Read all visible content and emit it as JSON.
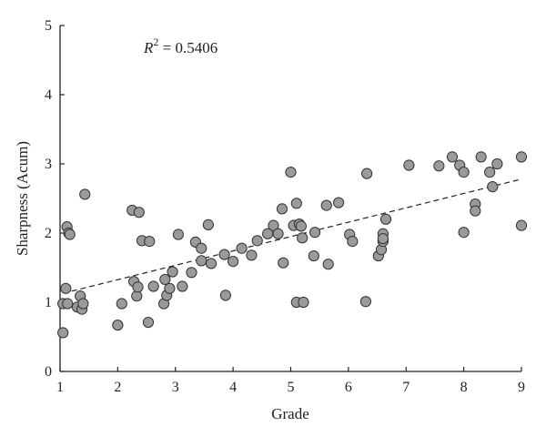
{
  "chart_data": {
    "type": "scatter",
    "title": "",
    "xlabel": "Grade",
    "ylabel": "Sharpness (Acum)",
    "xlim": [
      1,
      9
    ],
    "ylim": [
      0,
      5
    ],
    "xticks": [
      1,
      2,
      3,
      4,
      5,
      6,
      7,
      8,
      9
    ],
    "yticks": [
      0,
      1,
      2,
      3,
      4,
      5
    ],
    "grid": false,
    "legend": "none",
    "annotation": {
      "prefix": "R",
      "superscript": "2",
      "value": " = 0.5406"
    },
    "marker_fill": "#9a9a9a",
    "marker_stroke": "#333333",
    "trendline": {
      "style": "dashed",
      "x": [
        1.2,
        9
      ],
      "y": [
        1.16,
        2.78
      ]
    },
    "points": [
      [
        1.05,
        0.56
      ],
      [
        1.05,
        0.98
      ],
      [
        1.1,
        1.2
      ],
      [
        1.12,
        2.09
      ],
      [
        1.15,
        2.0
      ],
      [
        1.17,
        1.98
      ],
      [
        1.13,
        0.98
      ],
      [
        1.3,
        0.93
      ],
      [
        1.35,
        1.09
      ],
      [
        1.38,
        0.9
      ],
      [
        1.4,
        0.98
      ],
      [
        1.43,
        2.56
      ],
      [
        2.0,
        0.67
      ],
      [
        2.07,
        0.98
      ],
      [
        2.25,
        2.33
      ],
      [
        2.28,
        1.3
      ],
      [
        2.33,
        1.09
      ],
      [
        2.35,
        1.22
      ],
      [
        2.37,
        2.3
      ],
      [
        2.42,
        1.89
      ],
      [
        2.55,
        1.88
      ],
      [
        2.53,
        0.71
      ],
      [
        2.62,
        1.23
      ],
      [
        2.8,
        0.98
      ],
      [
        2.82,
        1.33
      ],
      [
        2.85,
        1.1
      ],
      [
        2.9,
        1.2
      ],
      [
        2.95,
        1.44
      ],
      [
        3.05,
        1.98
      ],
      [
        3.12,
        1.23
      ],
      [
        3.28,
        1.43
      ],
      [
        3.35,
        1.87
      ],
      [
        3.45,
        1.78
      ],
      [
        3.45,
        1.6
      ],
      [
        3.57,
        2.12
      ],
      [
        3.62,
        1.56
      ],
      [
        3.85,
        1.69
      ],
      [
        3.87,
        1.1
      ],
      [
        4.0,
        1.59
      ],
      [
        4.15,
        1.78
      ],
      [
        4.32,
        1.68
      ],
      [
        4.42,
        1.89
      ],
      [
        4.6,
        1.99
      ],
      [
        4.7,
        2.11
      ],
      [
        4.78,
        1.99
      ],
      [
        4.85,
        2.35
      ],
      [
        4.87,
        1.57
      ],
      [
        5.0,
        2.88
      ],
      [
        5.05,
        2.11
      ],
      [
        5.1,
        2.43
      ],
      [
        5.1,
        1.0
      ],
      [
        5.15,
        2.13
      ],
      [
        5.18,
        2.1
      ],
      [
        5.2,
        1.93
      ],
      [
        5.22,
        1.0
      ],
      [
        5.4,
        1.67
      ],
      [
        5.42,
        2.01
      ],
      [
        5.62,
        2.4
      ],
      [
        5.65,
        1.55
      ],
      [
        5.83,
        2.44
      ],
      [
        6.02,
        1.98
      ],
      [
        6.07,
        1.88
      ],
      [
        6.3,
        1.01
      ],
      [
        6.32,
        2.86
      ],
      [
        6.52,
        1.67
      ],
      [
        6.57,
        1.76
      ],
      [
        6.6,
        1.99
      ],
      [
        6.6,
        1.88
      ],
      [
        6.65,
        2.2
      ],
      [
        6.6,
        1.92
      ],
      [
        7.05,
        2.98
      ],
      [
        7.57,
        2.97
      ],
      [
        7.8,
        3.1
      ],
      [
        7.93,
        2.98
      ],
      [
        8.0,
        2.88
      ],
      [
        8.0,
        2.01
      ],
      [
        8.2,
        2.42
      ],
      [
        8.2,
        2.32
      ],
      [
        8.3,
        3.1
      ],
      [
        8.45,
        2.88
      ],
      [
        8.5,
        2.67
      ],
      [
        8.58,
        3.0
      ],
      [
        9.0,
        3.1
      ],
      [
        9.0,
        2.11
      ]
    ]
  }
}
